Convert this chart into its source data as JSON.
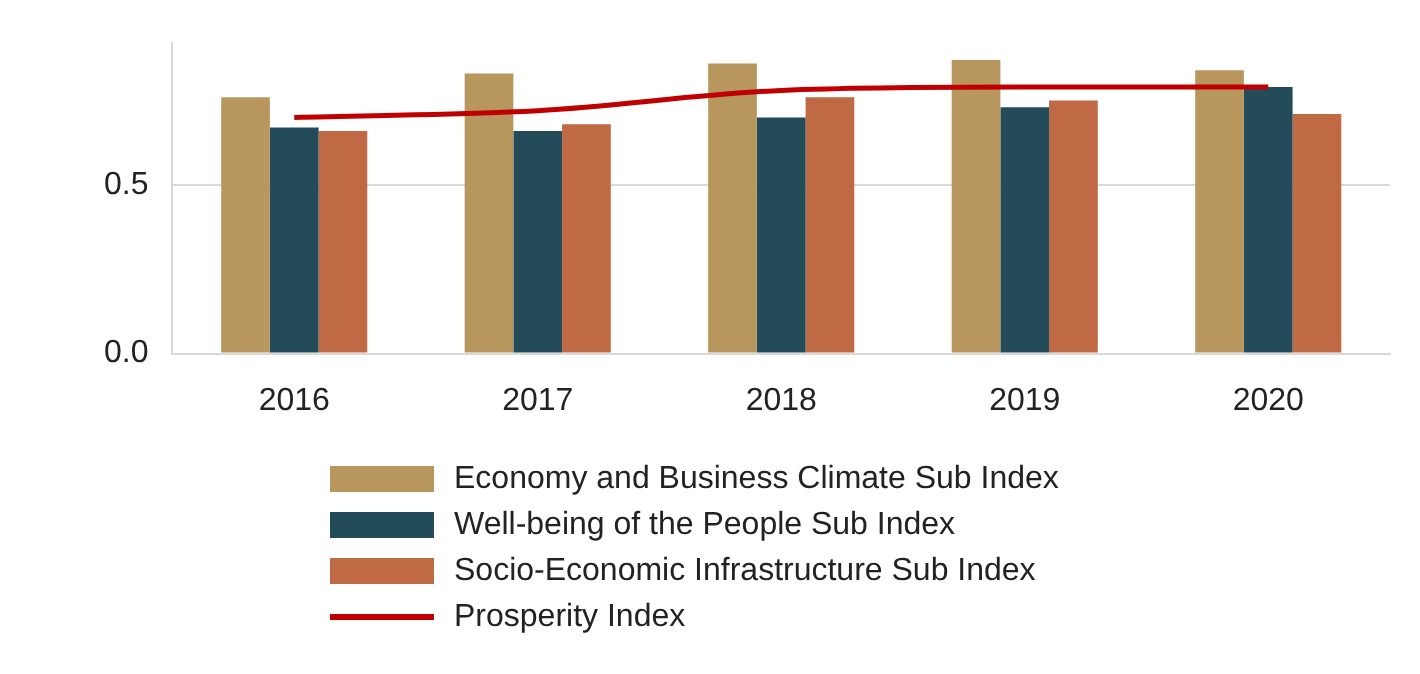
{
  "chart_data": {
    "type": "bar",
    "categories": [
      "2016",
      "2017",
      "2018",
      "2019",
      "2020"
    ],
    "series": [
      {
        "name": "Economy and Business Climate Sub Index",
        "color": "#b8975f",
        "values": [
          0.76,
          0.83,
          0.86,
          0.87,
          0.84
        ]
      },
      {
        "name": "Well-being of the People Sub Index",
        "color": "#234b5a",
        "values": [
          0.67,
          0.66,
          0.7,
          0.73,
          0.79
        ]
      },
      {
        "name": "Socio-Economic Infrastructure Sub Index",
        "color": "#c06a45",
        "values": [
          0.66,
          0.68,
          0.76,
          0.75,
          0.71
        ]
      },
      {
        "name": "Prosperity Index",
        "type": "line",
        "color": "#c00000",
        "values": [
          0.7,
          0.72,
          0.78,
          0.79,
          0.79
        ]
      }
    ],
    "ylim": [
      0,
      0.92
    ],
    "yticks": [
      {
        "value": 0,
        "label": "0.0"
      },
      {
        "value": 0.5,
        "label": "0.5"
      }
    ],
    "grid": "y",
    "legend": "bottom"
  }
}
